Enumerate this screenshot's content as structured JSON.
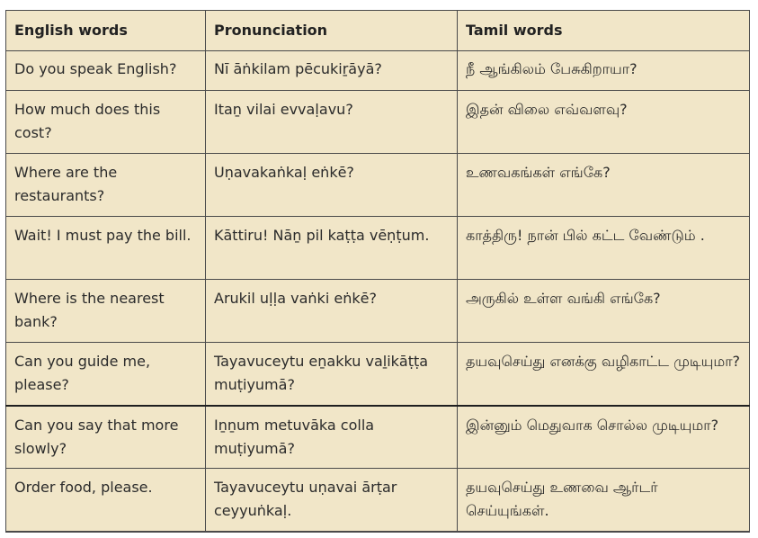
{
  "table": {
    "headers": [
      "English words",
      "Pronunciation",
      "Tamil words"
    ],
    "rows": [
      [
        "Do you speak English?",
        "Nī āṅkilam pēcukiṟāyā?",
        "நீ ஆங்கிலம் பேசுகிறாயா?"
      ],
      [
        "How much does this cost?",
        "Itaṉ vilai evvaḷavu?",
        "இதன் விலை எவ்வளவு?"
      ],
      [
        "Where are the restaurants?",
        "Uṇavakaṅkaḷ eṅkē?",
        "உணவகங்கள் எங்கே?"
      ],
      [
        "Wait! I must pay the bill.",
        "Kāttiru! Nāṉ pil kaṭṭa vēṇṭum.",
        "காத்திரு! நான் பில் கட்ட வேண்டும் ."
      ],
      [
        "Where is the nearest bank?",
        "Arukil uḷḷa vaṅki eṅkē?",
        "அருகில் உள்ள வங்கி எங்கே?"
      ],
      [
        "Can you guide me, please?",
        "Tayavuceytu eṉakku vaḻikāṭṭa muṭiyumā?",
        "தயவுசெய்து எனக்கு வழிகாட்ட முடியுமா?"
      ],
      [
        "Can you say that more slowly?",
        "Iṉṉum metuvāka colla muṭiyumā?",
        "இன்னும் மெதுவாக சொல்ல முடியுமா?"
      ],
      [
        "Order food, please.",
        "Tayavuceytu uṇavai ārṭar ceyyuṅkaḷ.",
        "தயவுசெய்து உணவை ஆர்டர் செய்யுங்கள்."
      ]
    ]
  }
}
